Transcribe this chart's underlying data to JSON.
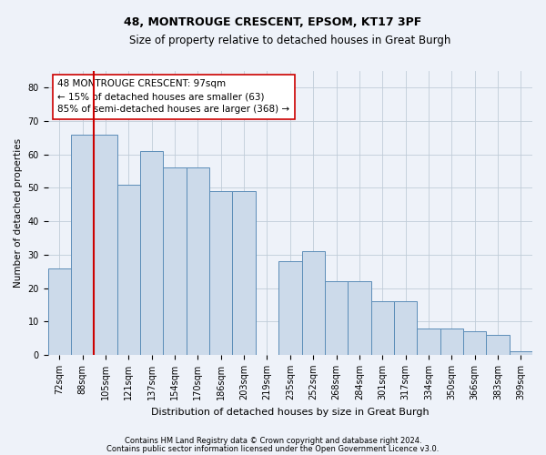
{
  "title1": "48, MONTROUGE CRESCENT, EPSOM, KT17 3PF",
  "title2": "Size of property relative to detached houses in Great Burgh",
  "xlabel": "Distribution of detached houses by size in Great Burgh",
  "ylabel": "Number of detached properties",
  "categories": [
    "72sqm",
    "88sqm",
    "105sqm",
    "121sqm",
    "137sqm",
    "154sqm",
    "170sqm",
    "186sqm",
    "203sqm",
    "219sqm",
    "235sqm",
    "252sqm",
    "268sqm",
    "284sqm",
    "301sqm",
    "317sqm",
    "334sqm",
    "350sqm",
    "366sqm",
    "383sqm",
    "399sqm"
  ],
  "values": [
    26,
    66,
    66,
    51,
    61,
    56,
    56,
    49,
    49,
    0,
    28,
    31,
    22,
    22,
    16,
    16,
    8,
    8,
    7,
    6,
    1
  ],
  "bar_color": "#ccdaea",
  "bar_edge_color": "#5b8db8",
  "vline_x": 1.5,
  "vline_color": "#cc0000",
  "annotation_text": "48 MONTROUGE CRESCENT: 97sqm\n← 15% of detached houses are smaller (63)\n85% of semi-detached houses are larger (368) →",
  "annotation_box_color": "white",
  "annotation_box_edge": "#cc0000",
  "ylim": [
    0,
    85
  ],
  "yticks": [
    0,
    10,
    20,
    30,
    40,
    50,
    60,
    70,
    80
  ],
  "footer1": "Contains HM Land Registry data © Crown copyright and database right 2024.",
  "footer2": "Contains public sector information licensed under the Open Government Licence v3.0.",
  "bg_color": "#eef2f9",
  "grid_color": "#c0ccd8",
  "title1_fontsize": 9,
  "title2_fontsize": 8.5,
  "xlabel_fontsize": 8,
  "ylabel_fontsize": 7.5,
  "tick_fontsize": 7,
  "footer_fontsize": 6,
  "annot_fontsize": 7.5
}
